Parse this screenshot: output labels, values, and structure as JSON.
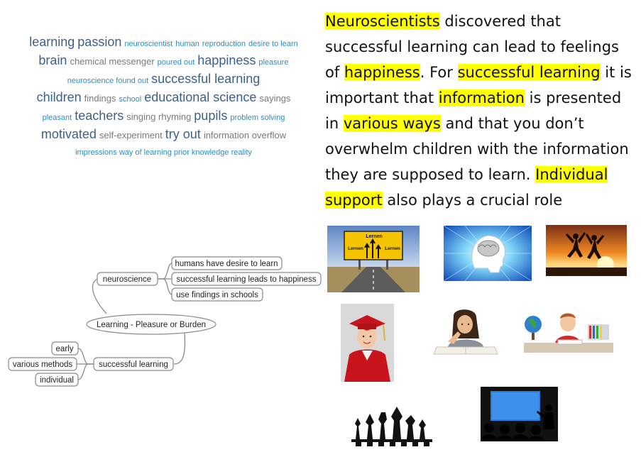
{
  "word_cloud": {
    "lines": [
      [
        [
          "learning",
          "s1"
        ],
        [
          "passion",
          "s1"
        ],
        [
          "neuroscientist",
          "s3"
        ],
        [
          "human",
          "s3"
        ],
        [
          "reproduction",
          "s3"
        ],
        [
          "desire to learn",
          "s3"
        ]
      ],
      [
        [
          "brain",
          "s1"
        ],
        [
          "chemical messenger",
          "s2"
        ],
        [
          "poured out",
          "s3"
        ],
        [
          "happiness",
          "s1"
        ],
        [
          "pleasure",
          "s3"
        ]
      ],
      [
        [
          "neuroscience found out",
          "s3"
        ],
        [
          "successful learning",
          "s1"
        ]
      ],
      [
        [
          "children",
          "s1"
        ],
        [
          "findings",
          "s2"
        ],
        [
          "school",
          "s3"
        ],
        [
          "educational science",
          "s1"
        ],
        [
          "sayings",
          "s2"
        ]
      ],
      [
        [
          "pleasant",
          "s3"
        ],
        [
          "teachers",
          "s1"
        ],
        [
          "singing rhyming",
          "s2"
        ],
        [
          "pupils",
          "s1"
        ],
        [
          "problem solving",
          "s3"
        ]
      ],
      [
        [
          "motivated",
          "s1"
        ],
        [
          "self-experiment",
          "s2"
        ],
        [
          "try out",
          "s1"
        ],
        [
          "information overflow",
          "s2"
        ]
      ],
      [
        [
          "impressions way of learning prior knowledge reality",
          "s3"
        ]
      ]
    ]
  },
  "paragraph": [
    {
      "t": "Neuroscientists",
      "h": true
    },
    {
      "t": " discovered that successful learning can lead to feelings of ",
      "h": false
    },
    {
      "t": "happiness",
      "h": true
    },
    {
      "t": ". For ",
      "h": false
    },
    {
      "t": "successful learning",
      "h": true
    },
    {
      "t": " it is important that ",
      "h": false
    },
    {
      "t": "information",
      "h": true
    },
    {
      "t": " is presented in ",
      "h": false
    },
    {
      "t": "various ways",
      "h": true
    },
    {
      "t": " and that you don’t overwhelm children with the information they are supposed to learn. ",
      "h": false
    },
    {
      "t": "Individual support",
      "h": true
    },
    {
      "t": " also plays a crucial role",
      "h": false
    }
  ],
  "mindmap": {
    "center": "Learning - Pleasure or Burden",
    "neuroscience": "neuroscience",
    "n1": "humans have desire to learn",
    "n2": "successful learning leads to happiness",
    "n3": "use findings in schools",
    "successful": "successful learning",
    "s1": "early",
    "s2": "various methods",
    "s3": "individual"
  },
  "sign": {
    "top": "Lernen",
    "left": "Lernen",
    "right": "Lernen"
  },
  "colors": {
    "highlight": "#ffff00",
    "cloud_dark": "#3d5f8c",
    "cloud_light": "#2a8fc4",
    "cloud_gray": "#7a7a7a"
  }
}
